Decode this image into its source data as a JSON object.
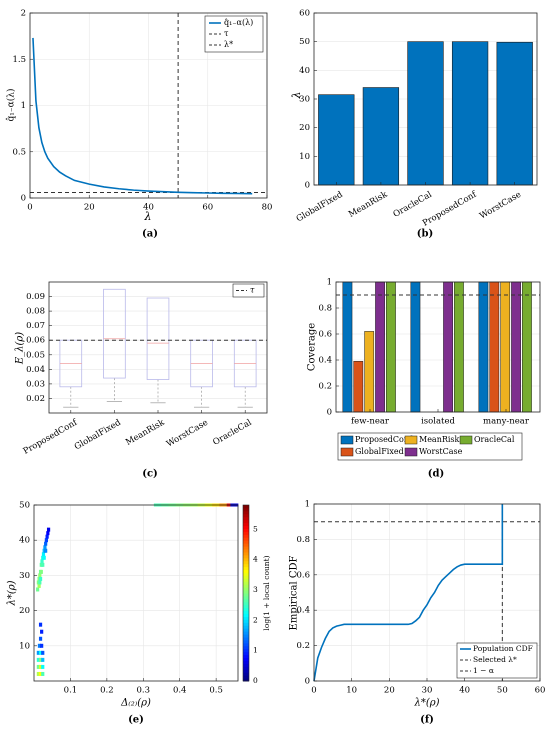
{
  "chart_data": [
    {
      "id": "a",
      "type": "line",
      "panel_label": "(a)",
      "xlabel": "λ",
      "ylabel": "q̂₁₋α(λ)",
      "xlim": [
        0,
        80
      ],
      "ylim": [
        0,
        2
      ],
      "xticks": [
        0,
        20,
        40,
        60,
        80
      ],
      "yticks": [
        0,
        0.5,
        1,
        1.5,
        2
      ],
      "xtick_labels": [
        "0",
        "20",
        "40",
        "60",
        "80"
      ],
      "ytick_labels": [
        "0",
        "0.5",
        "1",
        "1.5",
        "2"
      ],
      "grid": true,
      "legend_position": "top-right",
      "legend": [
        "q̂₁₋α(λ)",
        "τ",
        "λ*"
      ],
      "series": [
        {
          "name": "q̂₁₋α(λ)",
          "color": "#0072BD",
          "x": [
            1,
            2,
            3,
            4,
            5,
            6,
            8,
            10,
            12,
            15,
            20,
            25,
            30,
            35,
            40,
            45,
            50,
            55,
            60,
            65,
            70,
            75
          ],
          "values": [
            1.73,
            1.05,
            0.76,
            0.6,
            0.5,
            0.43,
            0.34,
            0.28,
            0.24,
            0.19,
            0.15,
            0.12,
            0.1,
            0.085,
            0.075,
            0.068,
            0.062,
            0.057,
            0.054,
            0.051,
            0.049,
            0.047
          ]
        }
      ],
      "hlines": [
        {
          "name": "τ",
          "value": 0.06,
          "style": "dashed"
        }
      ],
      "vlines": [
        {
          "name": "λ*",
          "value": 50,
          "style": "dashed"
        }
      ]
    },
    {
      "id": "b",
      "type": "bar",
      "panel_label": "(b)",
      "ylabel": "λ",
      "categories": [
        "GlobalFixed",
        "MeanRisk",
        "OracleCal",
        "ProposedConf",
        "WorstCase"
      ],
      "values": [
        31.5,
        34,
        50,
        50,
        49.8
      ],
      "ylim": [
        0,
        60
      ],
      "yticks": [
        0,
        10,
        20,
        30,
        40,
        50,
        60
      ],
      "ytick_labels": [
        "0",
        "10",
        "20",
        "30",
        "40",
        "50",
        "60"
      ],
      "grid": true,
      "color": "#0072BD"
    },
    {
      "id": "c",
      "type": "box",
      "panel_label": "(c)",
      "ylabel": "E_λ(ρ)",
      "categories": [
        "ProposedConf",
        "GlobalFixed",
        "MeanRisk",
        "WorstCase",
        "OracleCal"
      ],
      "ylim": [
        0.01,
        0.1
      ],
      "yticks": [
        0.02,
        0.03,
        0.04,
        0.05,
        0.06,
        0.07,
        0.08,
        0.09
      ],
      "ytick_labels": [
        "0.02",
        "0.03",
        "0.04",
        "0.05",
        "0.06",
        "0.07",
        "0.08",
        "0.09"
      ],
      "grid": true,
      "legend_position": "top-left",
      "legend": [
        "τ"
      ],
      "boxes": [
        {
          "name": "ProposedConf",
          "q1": 0.028,
          "median": 0.044,
          "q3": 0.06,
          "whisker_low": 0.014,
          "whisker_high": 0.06
        },
        {
          "name": "GlobalFixed",
          "q1": 0.034,
          "median": 0.061,
          "q3": 0.095,
          "whisker_low": 0.018,
          "whisker_high": 0.095
        },
        {
          "name": "MeanRisk",
          "q1": 0.033,
          "median": 0.058,
          "q3": 0.089,
          "whisker_low": 0.017,
          "whisker_high": 0.089
        },
        {
          "name": "WorstCase",
          "q1": 0.028,
          "median": 0.044,
          "q3": 0.06,
          "whisker_low": 0.014,
          "whisker_high": 0.06
        },
        {
          "name": "OracleCal",
          "q1": 0.028,
          "median": 0.044,
          "q3": 0.06,
          "whisker_low": 0.014,
          "whisker_high": 0.06
        }
      ],
      "hlines": [
        {
          "name": "τ",
          "value": 0.06,
          "style": "dashed"
        }
      ]
    },
    {
      "id": "d",
      "type": "bar",
      "panel_label": "(d)",
      "ylabel": "Coverage",
      "categories": [
        "few-near",
        "isolated",
        "many-near"
      ],
      "ylim": [
        0,
        1
      ],
      "yticks": [
        0,
        0.2,
        0.4,
        0.6,
        0.8,
        1
      ],
      "ytick_labels": [
        "0",
        "0.2",
        "0.4",
        "0.6",
        "0.8",
        "1"
      ],
      "grid": true,
      "legend_position": "bottom",
      "series": [
        {
          "name": "ProposedConf",
          "color": "#0072BD",
          "values": [
            1,
            1,
            1
          ]
        },
        {
          "name": "GlobalFixed",
          "color": "#D95319",
          "values": [
            0.39,
            0,
            1
          ]
        },
        {
          "name": "MeanRisk",
          "color": "#EDB120",
          "values": [
            0.62,
            0,
            1
          ]
        },
        {
          "name": "WorstCase",
          "color": "#7E2F8E",
          "values": [
            1,
            1,
            1
          ]
        },
        {
          "name": "OracleCal",
          "color": "#77AC30",
          "values": [
            1,
            1,
            1
          ]
        }
      ],
      "hlines": [
        {
          "value": 0.9,
          "style": "dashed"
        }
      ]
    },
    {
      "id": "e",
      "type": "heatmap",
      "panel_label": "(e)",
      "xlabel": "Δ₍₂₎(ρ)",
      "ylabel": "λ*(ρ)",
      "colorbar_label": "log(1 + local count)",
      "xlim": [
        0,
        0.56
      ],
      "ylim": [
        0,
        50
      ],
      "xticks": [
        0.1,
        0.2,
        0.3,
        0.4,
        0.5
      ],
      "yticks": [
        10,
        20,
        30,
        40,
        50
      ],
      "xtick_labels": [
        "0.1",
        "0.2",
        "0.3",
        "0.4",
        "0.5"
      ],
      "ytick_labels": [
        "10",
        "20",
        "30",
        "40",
        "50"
      ],
      "colorbar_ticks": [
        0,
        1,
        2,
        3,
        4,
        5
      ],
      "colorbar_tick_labels": [
        "0",
        "1",
        "2",
        "3",
        "4",
        "5"
      ],
      "colorbar_range": [
        0,
        5.8
      ],
      "grid": true,
      "colormap": "jet",
      "cells": [
        [
          0.012,
          2,
          3.2
        ],
        [
          0.018,
          2,
          3.6
        ],
        [
          0.024,
          2,
          2.6
        ],
        [
          0.012,
          4,
          2.8
        ],
        [
          0.018,
          4,
          3.4
        ],
        [
          0.024,
          4,
          2.2
        ],
        [
          0.012,
          6,
          2.4
        ],
        [
          0.018,
          6,
          2.9
        ],
        [
          0.024,
          6,
          1.8
        ],
        [
          0.012,
          8,
          1.6
        ],
        [
          0.018,
          8,
          2.2
        ],
        [
          0.024,
          8,
          1.2
        ],
        [
          0.015,
          10,
          1.4
        ],
        [
          0.021,
          10,
          1.0
        ],
        [
          0.018,
          12,
          1.2
        ],
        [
          0.021,
          14,
          0.9
        ],
        [
          0.018,
          16,
          1.0
        ],
        [
          0.01,
          26,
          2.8
        ],
        [
          0.012,
          28,
          2.9
        ],
        [
          0.014,
          29,
          2.9
        ],
        [
          0.016,
          30,
          3.0
        ],
        [
          0.018,
          31,
          2.8
        ],
        [
          0.02,
          33,
          2.7
        ],
        [
          0.022,
          34,
          2.5
        ],
        [
          0.024,
          35,
          2.3
        ],
        [
          0.026,
          36,
          2.1
        ],
        [
          0.028,
          37,
          1.8
        ],
        [
          0.03,
          38,
          1.6
        ],
        [
          0.032,
          39,
          1.3
        ],
        [
          0.034,
          40,
          1.1
        ],
        [
          0.036,
          41,
          0.9
        ],
        [
          0.038,
          42,
          0.7
        ],
        [
          0.04,
          43,
          0.6
        ],
        [
          0.014,
          27,
          3.1
        ],
        [
          0.016,
          28,
          2.6
        ],
        [
          0.018,
          29,
          2.5
        ],
        [
          0.02,
          31,
          2.9
        ],
        [
          0.024,
          33,
          2.6
        ],
        [
          0.028,
          35,
          2.2
        ],
        [
          0.032,
          37,
          1.5
        ],
        [
          0.34,
          50,
          2.6
        ],
        [
          0.36,
          50,
          2.7
        ],
        [
          0.38,
          50,
          2.8
        ],
        [
          0.4,
          50,
          2.9
        ],
        [
          0.42,
          50,
          3.0
        ],
        [
          0.44,
          50,
          3.1
        ],
        [
          0.46,
          50,
          3.3
        ],
        [
          0.48,
          50,
          3.5
        ],
        [
          0.5,
          50,
          3.8
        ],
        [
          0.52,
          50,
          4.2
        ],
        [
          0.54,
          50,
          5.2
        ],
        [
          0.55,
          50,
          0.5
        ]
      ]
    },
    {
      "id": "f",
      "type": "line",
      "panel_label": "(f)",
      "xlabel": "λ*(ρ)",
      "ylabel": "Empirical CDF",
      "xlim": [
        0,
        60
      ],
      "ylim": [
        0,
        1
      ],
      "xticks": [
        0,
        10,
        20,
        30,
        40,
        50,
        60
      ],
      "yticks": [
        0,
        0.2,
        0.4,
        0.6,
        0.8,
        1
      ],
      "xtick_labels": [
        "0",
        "10",
        "20",
        "30",
        "40",
        "50",
        "60"
      ],
      "ytick_labels": [
        "0",
        "0.2",
        "0.4",
        "0.6",
        "0.8",
        "1"
      ],
      "grid": true,
      "legend_position": "bottom-right",
      "legend": [
        "Population CDF",
        "Selected λ*",
        "1 − α"
      ],
      "series": [
        {
          "name": "Population CDF",
          "color": "#0072BD",
          "x": [
            0,
            1,
            2,
            3,
            4,
            5,
            6,
            7,
            8,
            10,
            15,
            20,
            25,
            26,
            27,
            28,
            29,
            30,
            31,
            32,
            33,
            34,
            35,
            36,
            37,
            38,
            39,
            40,
            45,
            49,
            50,
            50
          ],
          "values": [
            0,
            0.13,
            0.19,
            0.24,
            0.28,
            0.3,
            0.31,
            0.315,
            0.32,
            0.32,
            0.32,
            0.32,
            0.32,
            0.325,
            0.34,
            0.36,
            0.4,
            0.43,
            0.47,
            0.5,
            0.54,
            0.57,
            0.59,
            0.61,
            0.63,
            0.645,
            0.655,
            0.66,
            0.66,
            0.66,
            0.66,
            1.0
          ]
        }
      ],
      "hlines": [
        {
          "name": "1 − α",
          "value": 0.9,
          "style": "dashed"
        }
      ],
      "vlines": [
        {
          "name": "Selected λ*",
          "value": 50,
          "style": "dashed"
        }
      ]
    }
  ]
}
